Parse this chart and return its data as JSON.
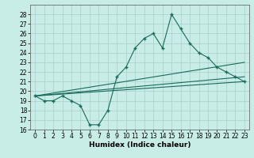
{
  "background_color": "#c8ece6",
  "grid_color": "#aacccc",
  "line_color": "#1a6b5a",
  "xlabel": "Humidex (Indice chaleur)",
  "xlim": [
    -0.5,
    23.5
  ],
  "ylim": [
    16,
    29
  ],
  "xticks": [
    0,
    1,
    2,
    3,
    4,
    5,
    6,
    7,
    8,
    9,
    10,
    11,
    12,
    13,
    14,
    15,
    16,
    17,
    18,
    19,
    20,
    21,
    22,
    23
  ],
  "yticks": [
    16,
    17,
    18,
    19,
    20,
    21,
    22,
    23,
    24,
    25,
    26,
    27,
    28
  ],
  "line1_x": [
    0,
    1,
    2,
    3,
    4,
    5,
    6,
    7,
    8,
    9,
    10,
    11,
    12,
    13,
    14,
    15,
    16,
    17,
    18,
    19,
    20,
    21,
    22,
    23
  ],
  "line1_y": [
    19.5,
    19.0,
    19.0,
    19.5,
    19.0,
    18.5,
    16.5,
    16.5,
    18.0,
    21.5,
    22.5,
    24.5,
    25.5,
    26.0,
    24.5,
    28.0,
    26.5,
    25.0,
    24.0,
    23.5,
    22.5,
    22.0,
    21.5,
    21.0
  ],
  "line2_x": [
    0,
    23
  ],
  "line2_y": [
    19.5,
    21.0
  ],
  "line3_x": [
    0,
    23
  ],
  "line3_y": [
    19.5,
    23.0
  ],
  "line4_x": [
    0,
    23
  ],
  "line4_y": [
    19.5,
    21.5
  ],
  "marker": "+",
  "markersize": 3,
  "linewidth": 0.8,
  "tick_fontsize": 5.5,
  "xlabel_fontsize": 6.5
}
